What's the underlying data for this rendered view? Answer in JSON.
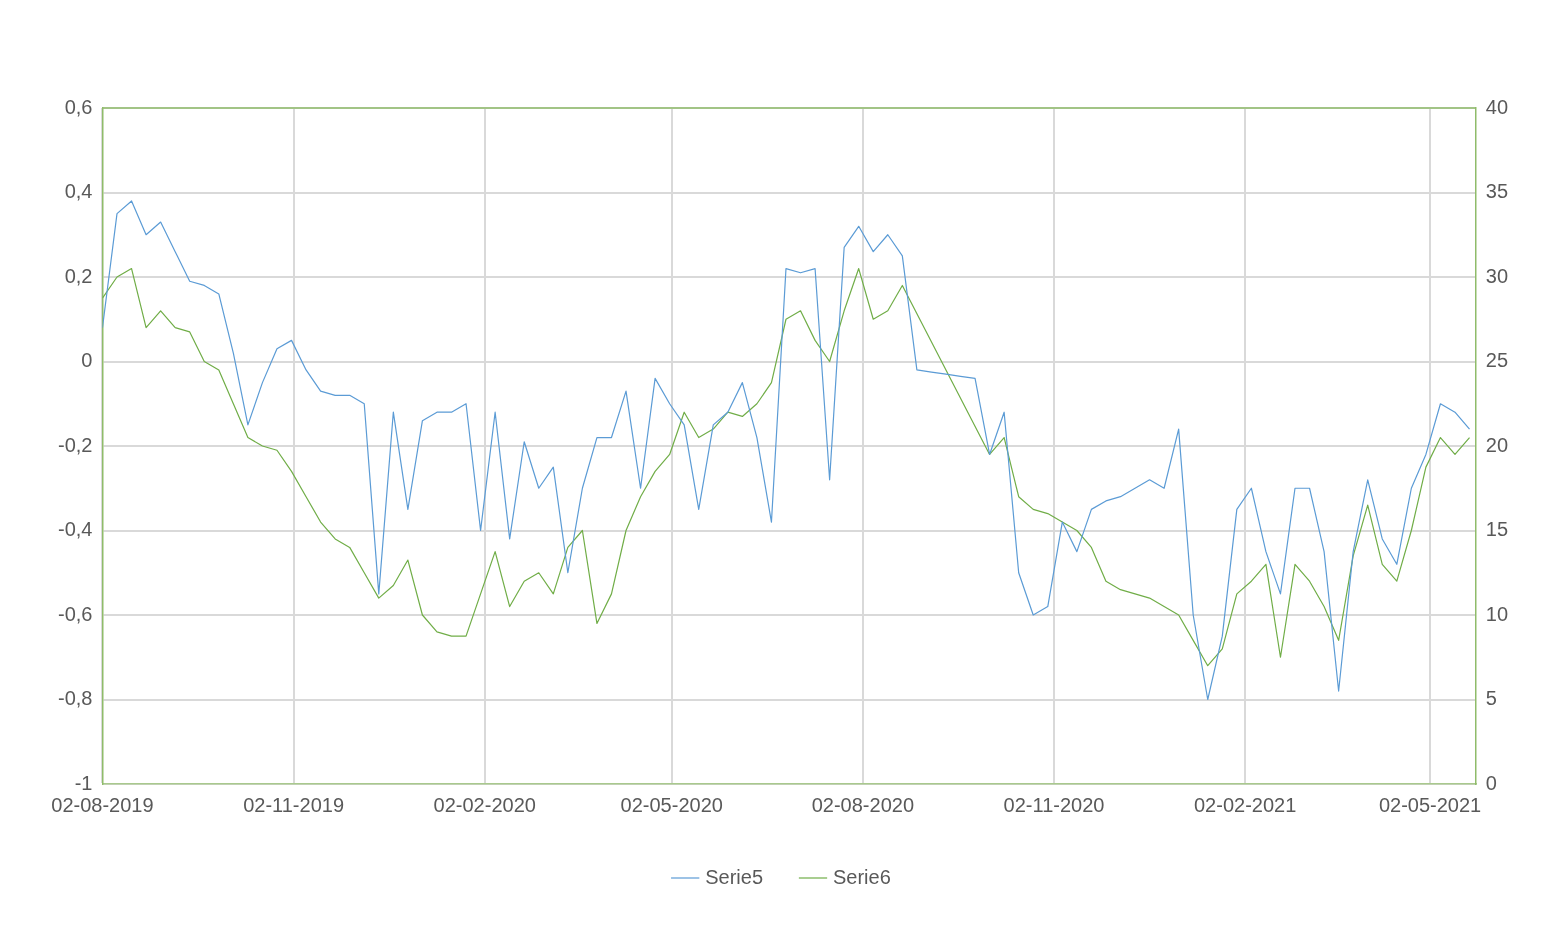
{
  "chart_data": {
    "type": "line",
    "x": [
      "2019-08-02",
      "2019-08-09",
      "2019-08-16",
      "2019-08-23",
      "2019-08-30",
      "2019-09-06",
      "2019-09-13",
      "2019-09-20",
      "2019-09-27",
      "2019-10-04",
      "2019-10-11",
      "2019-10-18",
      "2019-10-25",
      "2019-11-01",
      "2019-11-08",
      "2019-11-15",
      "2019-11-22",
      "2019-11-29",
      "2019-12-06",
      "2019-12-13",
      "2019-12-20",
      "2019-12-27",
      "2020-01-03",
      "2020-01-10",
      "2020-01-17",
      "2020-01-24",
      "2020-01-31",
      "2020-02-07",
      "2020-02-14",
      "2020-02-21",
      "2020-02-28",
      "2020-03-06",
      "2020-03-13",
      "2020-03-20",
      "2020-03-27",
      "2020-04-03",
      "2020-04-10",
      "2020-04-17",
      "2020-04-24",
      "2020-05-01",
      "2020-05-08",
      "2020-05-15",
      "2020-05-22",
      "2020-05-29",
      "2020-06-05",
      "2020-06-12",
      "2020-06-19",
      "2020-06-26",
      "2020-07-03",
      "2020-07-10",
      "2020-07-17",
      "2020-07-24",
      "2020-07-31",
      "2020-08-07",
      "2020-08-14",
      "2020-08-21",
      "2020-08-28",
      "2020-09-04",
      "2020-09-11",
      "2020-09-18",
      "2020-09-25",
      "2020-10-02",
      "2020-10-09",
      "2020-10-16",
      "2020-10-23",
      "2020-10-30",
      "2020-11-06",
      "2020-11-13",
      "2020-11-20",
      "2020-11-27",
      "2020-12-04",
      "2020-12-11",
      "2020-12-18",
      "2020-12-25",
      "2021-01-01",
      "2021-01-08",
      "2021-01-15",
      "2021-01-22",
      "2021-01-29",
      "2021-02-05",
      "2021-02-12",
      "2021-02-19",
      "2021-02-26",
      "2021-03-05",
      "2021-03-12",
      "2021-03-19",
      "2021-03-26",
      "2021-04-02",
      "2021-04-09",
      "2021-04-16",
      "2021-04-23",
      "2021-04-30",
      "2021-05-07",
      "2021-05-14",
      "2021-05-21"
    ],
    "series": [
      {
        "name": "Serie5",
        "color": "#5b9bd5",
        "axis": "y",
        "values": [
          0.08,
          0.35,
          0.38,
          0.3,
          0.33,
          0.26,
          0.19,
          0.18,
          0.16,
          0.02,
          -0.15,
          -0.05,
          0.03,
          0.05,
          -0.02,
          -0.07,
          -0.08,
          -0.08,
          -0.1,
          -0.55,
          -0.12,
          -0.35,
          -0.14,
          -0.12,
          -0.12,
          -0.1,
          -0.4,
          -0.12,
          -0.42,
          -0.19,
          -0.3,
          -0.25,
          -0.5,
          -0.3,
          -0.18,
          -0.18,
          -0.07,
          -0.3,
          -0.04,
          -0.1,
          -0.15,
          -0.35,
          -0.15,
          -0.12,
          -0.05,
          -0.18,
          -0.38,
          0.22,
          0.21,
          0.22,
          -0.28,
          0.27,
          0.32,
          0.26,
          0.3,
          0.25,
          -0.02,
          -0.025,
          -0.03,
          -0.035,
          -0.04,
          -0.22,
          -0.12,
          -0.5,
          -0.6,
          -0.58,
          -0.38,
          -0.45,
          -0.35,
          -0.33,
          -0.32,
          -0.3,
          -0.28,
          -0.3,
          -0.16,
          -0.6,
          -0.8,
          -0.65,
          -0.35,
          -0.3,
          -0.45,
          -0.55,
          -0.3,
          -0.3,
          -0.45,
          -0.78,
          -0.45,
          -0.28,
          -0.42,
          -0.48,
          -0.3,
          -0.22,
          -0.1,
          -0.12,
          -0.16
        ]
      },
      {
        "name": "Serie6",
        "color": "#70ad47",
        "axis": "y2",
        "x": [
          "2019-08-02",
          "2019-08-09",
          "2019-08-16",
          "2019-08-23",
          "2019-08-30",
          "2019-09-06",
          "2019-09-13",
          "2019-09-20",
          "2019-09-27",
          "2019-10-04",
          "2019-10-11",
          "2019-10-18",
          "2019-10-25",
          "2019-11-01",
          "2019-11-08",
          "2019-11-15",
          "2019-11-22",
          "2019-11-29",
          "2019-12-06",
          "2019-12-13",
          "2019-12-20",
          "2019-12-27",
          "2020-01-03",
          "2020-01-10",
          "2020-01-17",
          "2020-01-24",
          "2020-01-31",
          "2020-02-07",
          "2020-02-14",
          "2020-02-21",
          "2020-02-28",
          "2020-03-06",
          "2020-03-13",
          "2020-03-20",
          "2020-03-27",
          "2020-04-03",
          "2020-04-10",
          "2020-04-17",
          "2020-04-24",
          "2020-05-01",
          "2020-05-08",
          "2020-05-15",
          "2020-05-22",
          "2020-05-29",
          "2020-06-05",
          "2020-06-12",
          "2020-06-19",
          "2020-06-26",
          "2020-07-03",
          "2020-07-10",
          "2020-07-17",
          "2020-07-24",
          "2020-07-31",
          "2020-08-07",
          "2020-08-14",
          "2020-08-21",
          "2020-10-02",
          "2020-10-09",
          "2020-10-16",
          "2020-10-23",
          "2020-10-30",
          "2020-11-06",
          "2020-11-13",
          "2020-11-20",
          "2020-11-27",
          "2020-12-04",
          "2020-12-11",
          "2020-12-18",
          "2020-12-25",
          "2021-01-01",
          "2021-01-08",
          "2021-01-15",
          "2021-01-22",
          "2021-01-29",
          "2021-02-05",
          "2021-02-12",
          "2021-02-19",
          "2021-02-26",
          "2021-03-05",
          "2021-03-12",
          "2021-03-19",
          "2021-03-26",
          "2021-04-02",
          "2021-04-09",
          "2021-04-16",
          "2021-04-23",
          "2021-04-30",
          "2021-05-07",
          "2021-05-14",
          "2021-05-21"
        ],
        "values": [
          28.75,
          30,
          30.5,
          27,
          28,
          27,
          26.75,
          25,
          24.5,
          22.5,
          20.5,
          20,
          19.75,
          18.5,
          17,
          15.5,
          14.5,
          14,
          12.5,
          11,
          11.75,
          13.25,
          10,
          9,
          8.75,
          8.75,
          11.25,
          13.75,
          10.5,
          12,
          12.5,
          11.25,
          14,
          15,
          9.5,
          11.25,
          15,
          17,
          18.5,
          19.5,
          22,
          20.5,
          21,
          22,
          21.75,
          22.5,
          23.75,
          27.5,
          28,
          26.25,
          25,
          28,
          30.5,
          27.5,
          28,
          29.5,
          19.5,
          20.5,
          17,
          16.25,
          16,
          15.5,
          15,
          14,
          12,
          11.5,
          11.25,
          11,
          10.5,
          10,
          8.5,
          7,
          8,
          11.25,
          12,
          13,
          7.5,
          13,
          12,
          10.5,
          8.5,
          13.5,
          16.5,
          13,
          12,
          15,
          18.75,
          20.5,
          19.5,
          20.5
        ]
      }
    ],
    "xlim": [
      "2019-08-02",
      "2021-05-24"
    ],
    "xticks": [
      {
        "value": "2019-08-02",
        "label": "02-08-2019"
      },
      {
        "value": "2019-11-02",
        "label": "02-11-2019"
      },
      {
        "value": "2020-02-02",
        "label": "02-02-2020"
      },
      {
        "value": "2020-05-02",
        "label": "02-05-2020"
      },
      {
        "value": "2020-08-02",
        "label": "02-08-2020"
      },
      {
        "value": "2020-11-02",
        "label": "02-11-2020"
      },
      {
        "value": "2021-02-02",
        "label": "02-02-2021"
      },
      {
        "value": "2021-05-02",
        "label": "02-05-2021"
      }
    ],
    "ylim": [
      -1,
      0.6
    ],
    "yticks": [
      {
        "value": -1,
        "label": "-1"
      },
      {
        "value": -0.8,
        "label": "-0,8"
      },
      {
        "value": -0.6,
        "label": "-0,6"
      },
      {
        "value": -0.4,
        "label": "-0,4"
      },
      {
        "value": -0.2,
        "label": "-0,2"
      },
      {
        "value": 0,
        "label": "0"
      },
      {
        "value": 0.2,
        "label": "0,2"
      },
      {
        "value": 0.4,
        "label": "0,4"
      },
      {
        "value": 0.6,
        "label": "0,6"
      }
    ],
    "y2lim": [
      0,
      40
    ],
    "y2ticks": [
      0,
      5,
      10,
      15,
      20,
      25,
      30,
      35,
      40
    ],
    "grid": true,
    "legend": "bottom",
    "marker": "none",
    "line_style": "solid"
  }
}
